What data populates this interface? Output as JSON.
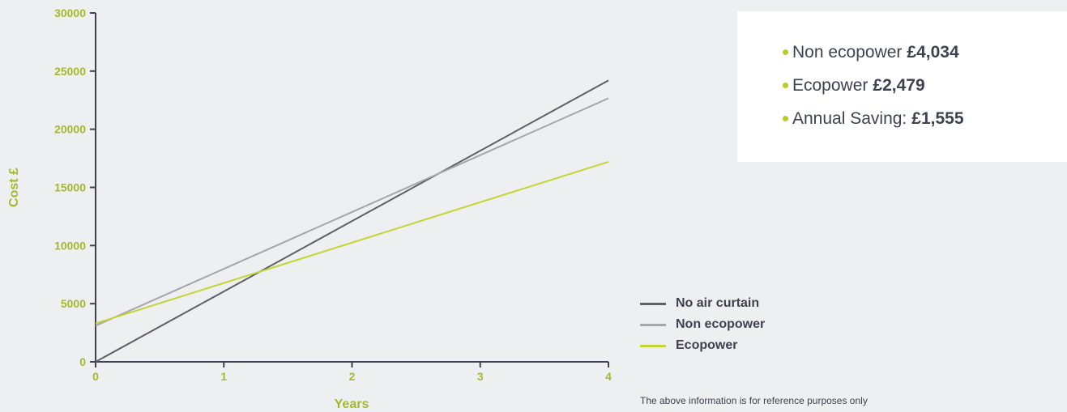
{
  "chart_data": {
    "type": "line",
    "xlabel": "Years",
    "ylabel": "Cost £",
    "x": [
      0,
      1,
      2,
      3,
      4
    ],
    "xticks": [
      "0",
      "1",
      "2",
      "3",
      "4"
    ],
    "yticks": [
      "0",
      "5000",
      "10000",
      "15000",
      "20000",
      "25000",
      "30000"
    ],
    "xlim": [
      0,
      4
    ],
    "ylim": [
      0,
      30000
    ],
    "grid": false,
    "legend_position": "bottom-right",
    "series": [
      {
        "name": "No air curtain",
        "color": "#5d5f69",
        "values": [
          0,
          6050,
          12100,
          18150,
          24200
        ]
      },
      {
        "name": "Non ecopower",
        "color": "#a4a6ab",
        "values": [
          3100,
          7990,
          12880,
          17770,
          22660
        ]
      },
      {
        "name": "Ecopower",
        "color": "#c3d531",
        "values": [
          3300,
          6775,
          10250,
          13725,
          17200
        ]
      }
    ]
  },
  "summary": {
    "items": [
      {
        "label": "Non ecopower",
        "value": "£4,034"
      },
      {
        "label": "Ecopower",
        "value": "£2,479"
      },
      {
        "label": "Annual Saving:",
        "value": "£1,555"
      }
    ]
  },
  "footnote": "The above information is for reference purposes only",
  "colors": {
    "accent": "#a4b92b",
    "bullet": "#b9cc2c",
    "axis": "#3d4250",
    "background": "#eeeff1"
  }
}
